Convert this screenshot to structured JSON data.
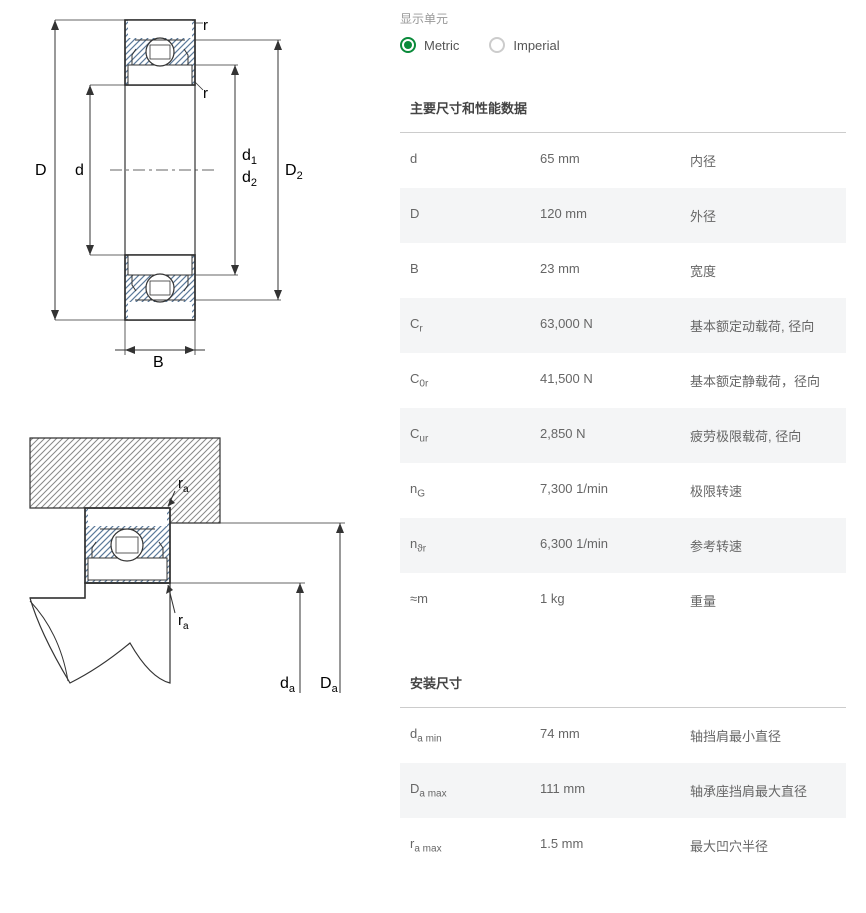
{
  "unit_label": "显示单元",
  "units": {
    "metric": "Metric",
    "imperial": "Imperial",
    "selected": "metric"
  },
  "sections": [
    {
      "title": "主要尺寸和性能数据",
      "rows": [
        {
          "sym": "d",
          "sub": "",
          "val": "65 mm",
          "desc": "内径"
        },
        {
          "sym": "D",
          "sub": "",
          "val": "120 mm",
          "desc": "外径"
        },
        {
          "sym": "B",
          "sub": "",
          "val": "23 mm",
          "desc": "宽度"
        },
        {
          "sym": "C",
          "sub": "r",
          "val": "63,000 N",
          "desc": "基本额定动载荷, 径向"
        },
        {
          "sym": "C",
          "sub": "0r",
          "val": "41,500 N",
          "desc": "基本额定静载荷，径向"
        },
        {
          "sym": "C",
          "sub": "ur",
          "val": "2,850 N",
          "desc": "疲劳极限载荷, 径向"
        },
        {
          "sym": "n",
          "sub": "G",
          "val": "7,300 1/min",
          "desc": "极限转速"
        },
        {
          "sym": "n",
          "sub": "ϑr",
          "val": "6,300 1/min",
          "desc": "参考转速"
        },
        {
          "sym": "≈m",
          "sub": "",
          "val": "1 kg",
          "desc": "重量"
        }
      ]
    },
    {
      "title": "安装尺寸",
      "rows": [
        {
          "sym": "d",
          "sub": "a min",
          "val": "74 mm",
          "desc": "轴挡肩最小直径"
        },
        {
          "sym": "D",
          "sub": "a max",
          "val": "111 mm",
          "desc": "轴承座挡肩最大直径"
        },
        {
          "sym": "r",
          "sub": "a max",
          "val": "1.5 mm",
          "desc": "最大凹穴半径"
        }
      ]
    }
  ],
  "diagram1": {
    "labels": {
      "D": "D",
      "d": "d",
      "d1": "d",
      "d1sub": "1",
      "d2": "d",
      "d2sub": "2",
      "D2": "D",
      "D2sub": "2",
      "B": "B",
      "r": "r"
    },
    "colors": {
      "stroke": "#333",
      "hatch": "#5b7a9a",
      "fill": "#fff"
    }
  },
  "diagram2": {
    "labels": {
      "ra": "r",
      "rasub": "a",
      "da": "d",
      "dasub": "a",
      "Da": "D",
      "Dasub": "a"
    },
    "colors": {
      "stroke": "#333",
      "hatch": "#888"
    }
  }
}
